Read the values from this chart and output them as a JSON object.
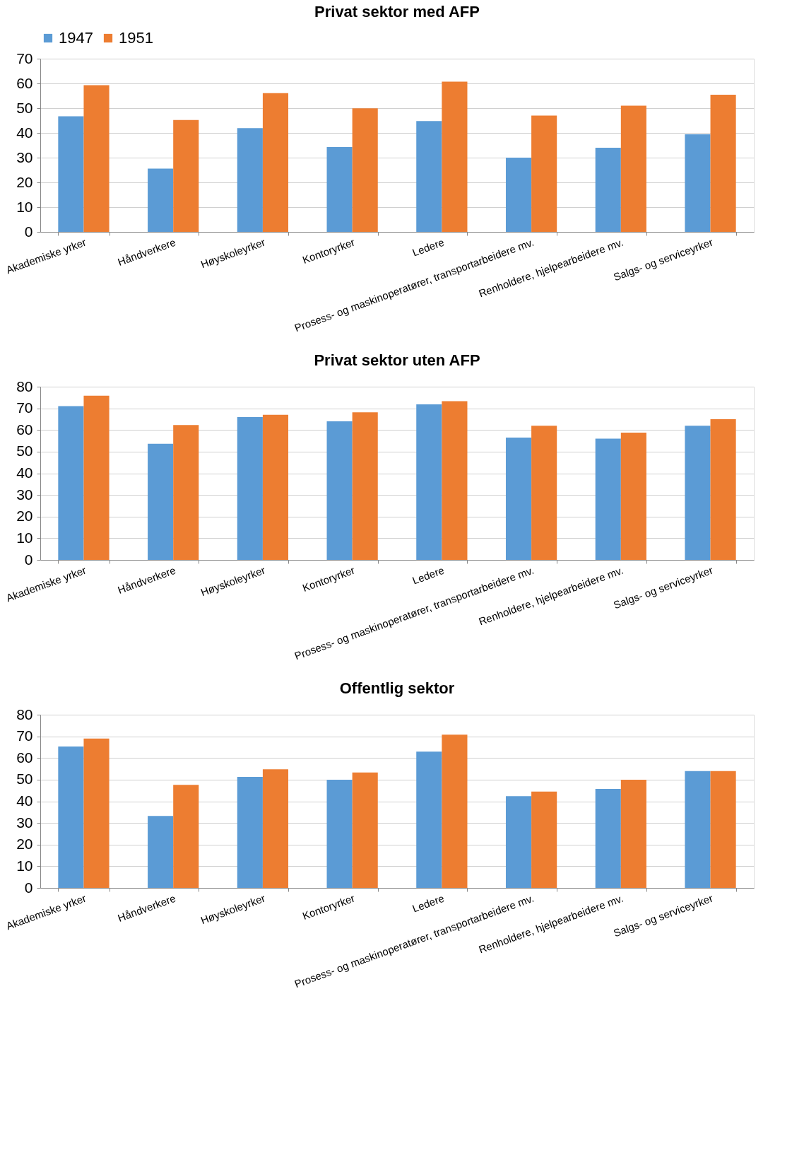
{
  "chart_data": [
    {
      "type": "bar",
      "title": "Privat sektor med AFP",
      "categories": [
        "Akademiske yrker",
        "Håndverkere",
        "Høyskoleyrker",
        "Kontoryrker",
        "Ledere",
        "Prosess- og maskinoperatører, transportarbeidere mv.",
        "Renholdere, hjelpearbeidere mv.",
        "Salgs- og serviceyrker"
      ],
      "series": [
        {
          "name": "1947",
          "color": "#5b9bd5",
          "values": [
            46.7,
            25.6,
            41.9,
            34.3,
            44.8,
            30,
            34,
            39.4
          ]
        },
        {
          "name": "1951",
          "color": "#ed7d31",
          "values": [
            59.3,
            45.2,
            56.1,
            49.9,
            60.7,
            47,
            51,
            55.4
          ]
        }
      ],
      "ylim": [
        0,
        70
      ],
      "yticks": [
        0,
        10,
        20,
        30,
        40,
        50,
        60,
        70
      ],
      "grid": "y",
      "legend": "top"
    },
    {
      "type": "bar",
      "title": "Privat sektor uten AFP",
      "categories": [
        "Akademiske yrker",
        "Håndverkere",
        "Høyskoleyrker",
        "Kontoryrker",
        "Ledere",
        "Prosess- og maskinoperatører, transportarbeidere mv.",
        "Renholdere, hjelpearbeidere mv.",
        "Salgs- og serviceyrker"
      ],
      "series": [
        {
          "name": "1947",
          "color": "#5b9bd5",
          "values": [
            71,
            53.6,
            66,
            64,
            71.8,
            56.5,
            56,
            62
          ]
        },
        {
          "name": "1951",
          "color": "#ed7d31",
          "values": [
            75.8,
            62.3,
            67,
            68.2,
            73.3,
            62,
            58.8,
            65
          ]
        }
      ],
      "ylim": [
        0,
        80
      ],
      "yticks": [
        0,
        10,
        20,
        30,
        40,
        50,
        60,
        70,
        80
      ],
      "grid": "y",
      "legend": false
    },
    {
      "type": "bar",
      "title": "Offentlig sektor",
      "categories": [
        "Akademiske yrker",
        "Håndverkere",
        "Høyskoleyrker",
        "Kontoryrker",
        "Ledere",
        "Prosess- og maskinoperatører, transportarbeidere mv.",
        "Renholdere, hjelpearbeidere mv.",
        "Salgs- og serviceyrker"
      ],
      "series": [
        {
          "name": "1947",
          "color": "#5b9bd5",
          "values": [
            65.3,
            33.2,
            51.3,
            50,
            62.9,
            42.4,
            45.7,
            54
          ]
        },
        {
          "name": "1951",
          "color": "#ed7d31",
          "values": [
            69,
            47.6,
            54.8,
            53.3,
            70.8,
            44.5,
            50,
            54
          ]
        }
      ],
      "ylim": [
        0,
        80
      ],
      "yticks": [
        0,
        10,
        20,
        30,
        40,
        50,
        60,
        70,
        80
      ],
      "grid": "y",
      "legend": false
    }
  ]
}
